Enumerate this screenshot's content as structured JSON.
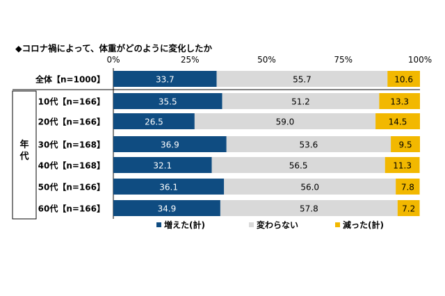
{
  "chart_data": {
    "type": "bar",
    "stacked": true,
    "horizontal": true,
    "title": "◆コロナ禍によって、体重がどのように変化したか",
    "xlim": [
      0,
      100
    ],
    "x_ticks": [
      "0%",
      "25%",
      "50%",
      "75%",
      "100%"
    ],
    "group_label": "年代",
    "categories": [
      "全体【n=1000】",
      "10代【n=166】",
      "20代【n=166】",
      "30代【n=168】",
      "40代【n=168】",
      "50代【n=166】",
      "60代【n=166】"
    ],
    "series": [
      {
        "name": "増えた(計)",
        "color": "#0f4c81",
        "label_color": "#ffffff",
        "values": [
          33.7,
          35.5,
          26.5,
          36.9,
          32.1,
          36.1,
          34.9
        ],
        "labels": [
          "33.7",
          "35.5",
          "26.5",
          "36.9",
          "32.1",
          "36.1",
          "34.9"
        ]
      },
      {
        "name": "変わらない",
        "color": "#d9d9d9",
        "label_color": "#000000",
        "values": [
          55.7,
          51.2,
          59.0,
          53.6,
          56.5,
          56.0,
          57.8
        ],
        "labels": [
          "55.7",
          "51.2",
          "59.0",
          "53.6",
          "56.5",
          "56.0",
          "57.8"
        ]
      },
      {
        "name": "減った(計)",
        "color": "#f2b800",
        "label_color": "#000000",
        "values": [
          10.6,
          13.3,
          14.5,
          9.5,
          11.3,
          7.8,
          7.2
        ],
        "labels": [
          "10.6",
          "13.3",
          "14.5",
          "9.5",
          "11.3",
          "7.8",
          "7.2"
        ]
      }
    ],
    "legend_position": "bottom",
    "grid": false
  }
}
